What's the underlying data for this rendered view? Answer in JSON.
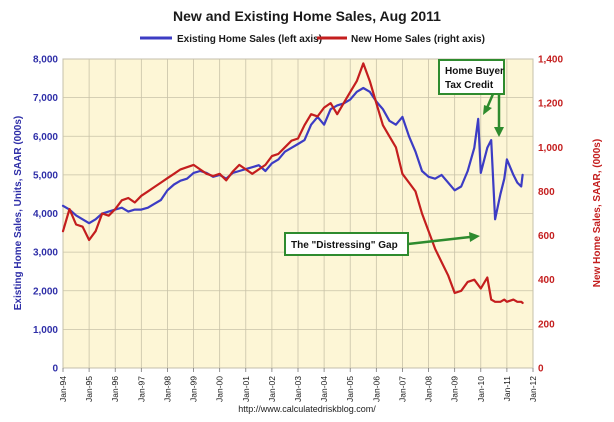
{
  "chart_data": {
    "type": "line",
    "title": "New and Existing Home Sales, Aug 2011",
    "ylabel_left": "Existing Home Sales, Units, SAAR (000s)",
    "ylabel_right": "New Home Sales, SAAR, (000s)",
    "ylim_left": [
      0,
      8000
    ],
    "ylim_right": [
      0,
      1400
    ],
    "yticks_left": [
      "0",
      "1,000",
      "2,000",
      "3,000",
      "4,000",
      "5,000",
      "6,000",
      "7,000",
      "8,000"
    ],
    "yticks_right": [
      "0",
      "200",
      "400",
      "600",
      "800",
      "1,000",
      "1,200",
      "1,400"
    ],
    "xticks": [
      "Jan-94",
      "Jan-95",
      "Jan-96",
      "Jan-97",
      "Jan-98",
      "Jan-99",
      "Jan-00",
      "Jan-01",
      "Jan-02",
      "Jan-03",
      "Jan-04",
      "Jan-05",
      "Jan-06",
      "Jan-07",
      "Jan-08",
      "Jan-09",
      "Jan-10",
      "Jan-11",
      "Jan-12"
    ],
    "x_range": [
      1994.0,
      2012.0
    ],
    "grid": true,
    "legend_position": "top",
    "series": [
      {
        "name": "Existing Home Sales (left axis)",
        "axis": "left",
        "color": "#3c3cc4",
        "points": [
          [
            1994.0,
            4200
          ],
          [
            1994.25,
            4100
          ],
          [
            1994.5,
            3950
          ],
          [
            1994.75,
            3850
          ],
          [
            1995.0,
            3750
          ],
          [
            1995.25,
            3850
          ],
          [
            1995.5,
            4000
          ],
          [
            1995.75,
            4050
          ],
          [
            1996.0,
            4100
          ],
          [
            1996.25,
            4150
          ],
          [
            1996.5,
            4050
          ],
          [
            1996.75,
            4100
          ],
          [
            1997.0,
            4100
          ],
          [
            1997.25,
            4150
          ],
          [
            1997.5,
            4250
          ],
          [
            1997.75,
            4350
          ],
          [
            1998.0,
            4600
          ],
          [
            1998.25,
            4750
          ],
          [
            1998.5,
            4850
          ],
          [
            1998.75,
            4900
          ],
          [
            1999.0,
            5050
          ],
          [
            1999.25,
            5100
          ],
          [
            1999.5,
            5050
          ],
          [
            1999.75,
            4950
          ],
          [
            2000.0,
            5000
          ],
          [
            2000.25,
            4900
          ],
          [
            2000.5,
            5050
          ],
          [
            2000.75,
            5100
          ],
          [
            2001.0,
            5150
          ],
          [
            2001.25,
            5200
          ],
          [
            2001.5,
            5250
          ],
          [
            2001.75,
            5100
          ],
          [
            2002.0,
            5300
          ],
          [
            2002.25,
            5400
          ],
          [
            2002.5,
            5600
          ],
          [
            2002.75,
            5700
          ],
          [
            2003.0,
            5800
          ],
          [
            2003.25,
            5900
          ],
          [
            2003.5,
            6300
          ],
          [
            2003.75,
            6500
          ],
          [
            2004.0,
            6300
          ],
          [
            2004.25,
            6700
          ],
          [
            2004.5,
            6800
          ],
          [
            2004.75,
            6850
          ],
          [
            2005.0,
            6950
          ],
          [
            2005.25,
            7150
          ],
          [
            2005.5,
            7250
          ],
          [
            2005.75,
            7150
          ],
          [
            2006.0,
            6900
          ],
          [
            2006.25,
            6700
          ],
          [
            2006.5,
            6400
          ],
          [
            2006.75,
            6300
          ],
          [
            2007.0,
            6500
          ],
          [
            2007.25,
            6000
          ],
          [
            2007.5,
            5600
          ],
          [
            2007.75,
            5100
          ],
          [
            2008.0,
            4950
          ],
          [
            2008.25,
            4900
          ],
          [
            2008.5,
            5000
          ],
          [
            2008.75,
            4800
          ],
          [
            2009.0,
            4600
          ],
          [
            2009.25,
            4700
          ],
          [
            2009.5,
            5100
          ],
          [
            2009.75,
            5700
          ],
          [
            2009.9,
            6450
          ],
          [
            2010.0,
            5050
          ],
          [
            2010.25,
            5700
          ],
          [
            2010.4,
            5900
          ],
          [
            2010.55,
            3850
          ],
          [
            2010.75,
            4500
          ],
          [
            2010.9,
            4900
          ],
          [
            2011.0,
            5400
          ],
          [
            2011.25,
            5000
          ],
          [
            2011.4,
            4800
          ],
          [
            2011.55,
            4700
          ],
          [
            2011.6,
            5000
          ]
        ]
      },
      {
        "name": "New Home Sales (right axis)",
        "axis": "right",
        "color": "#c41e1e",
        "points": [
          [
            1994.0,
            620
          ],
          [
            1994.25,
            720
          ],
          [
            1994.5,
            650
          ],
          [
            1994.75,
            640
          ],
          [
            1995.0,
            580
          ],
          [
            1995.25,
            620
          ],
          [
            1995.5,
            700
          ],
          [
            1995.75,
            690
          ],
          [
            1996.0,
            720
          ],
          [
            1996.25,
            760
          ],
          [
            1996.5,
            770
          ],
          [
            1996.75,
            750
          ],
          [
            1997.0,
            780
          ],
          [
            1997.25,
            800
          ],
          [
            1997.5,
            820
          ],
          [
            1997.75,
            840
          ],
          [
            1998.0,
            860
          ],
          [
            1998.25,
            880
          ],
          [
            1998.5,
            900
          ],
          [
            1998.75,
            910
          ],
          [
            1999.0,
            920
          ],
          [
            1999.25,
            900
          ],
          [
            1999.5,
            880
          ],
          [
            1999.75,
            870
          ],
          [
            2000.0,
            880
          ],
          [
            2000.25,
            850
          ],
          [
            2000.5,
            890
          ],
          [
            2000.75,
            920
          ],
          [
            2001.0,
            900
          ],
          [
            2001.25,
            880
          ],
          [
            2001.5,
            900
          ],
          [
            2001.75,
            920
          ],
          [
            2002.0,
            960
          ],
          [
            2002.25,
            970
          ],
          [
            2002.5,
            1000
          ],
          [
            2002.75,
            1030
          ],
          [
            2003.0,
            1040
          ],
          [
            2003.25,
            1100
          ],
          [
            2003.5,
            1150
          ],
          [
            2003.75,
            1140
          ],
          [
            2004.0,
            1180
          ],
          [
            2004.25,
            1200
          ],
          [
            2004.5,
            1150
          ],
          [
            2004.75,
            1200
          ],
          [
            2005.0,
            1250
          ],
          [
            2005.25,
            1300
          ],
          [
            2005.5,
            1380
          ],
          [
            2005.75,
            1300
          ],
          [
            2006.0,
            1200
          ],
          [
            2006.25,
            1100
          ],
          [
            2006.5,
            1050
          ],
          [
            2006.75,
            1000
          ],
          [
            2007.0,
            880
          ],
          [
            2007.25,
            840
          ],
          [
            2007.5,
            800
          ],
          [
            2007.75,
            700
          ],
          [
            2008.0,
            620
          ],
          [
            2008.25,
            540
          ],
          [
            2008.5,
            480
          ],
          [
            2008.75,
            420
          ],
          [
            2009.0,
            340
          ],
          [
            2009.25,
            350
          ],
          [
            2009.5,
            390
          ],
          [
            2009.75,
            400
          ],
          [
            2010.0,
            360
          ],
          [
            2010.25,
            410
          ],
          [
            2010.4,
            310
          ],
          [
            2010.55,
            300
          ],
          [
            2010.75,
            300
          ],
          [
            2010.9,
            310
          ],
          [
            2011.0,
            300
          ],
          [
            2011.25,
            310
          ],
          [
            2011.4,
            300
          ],
          [
            2011.55,
            300
          ],
          [
            2011.6,
            295
          ]
        ]
      }
    ],
    "annotations": [
      {
        "text": "Home Buyer\nTax Credit"
      },
      {
        "text": "The \"Distressing\" Gap"
      }
    ],
    "source": "http://www.calculatedriskblog.com/"
  }
}
